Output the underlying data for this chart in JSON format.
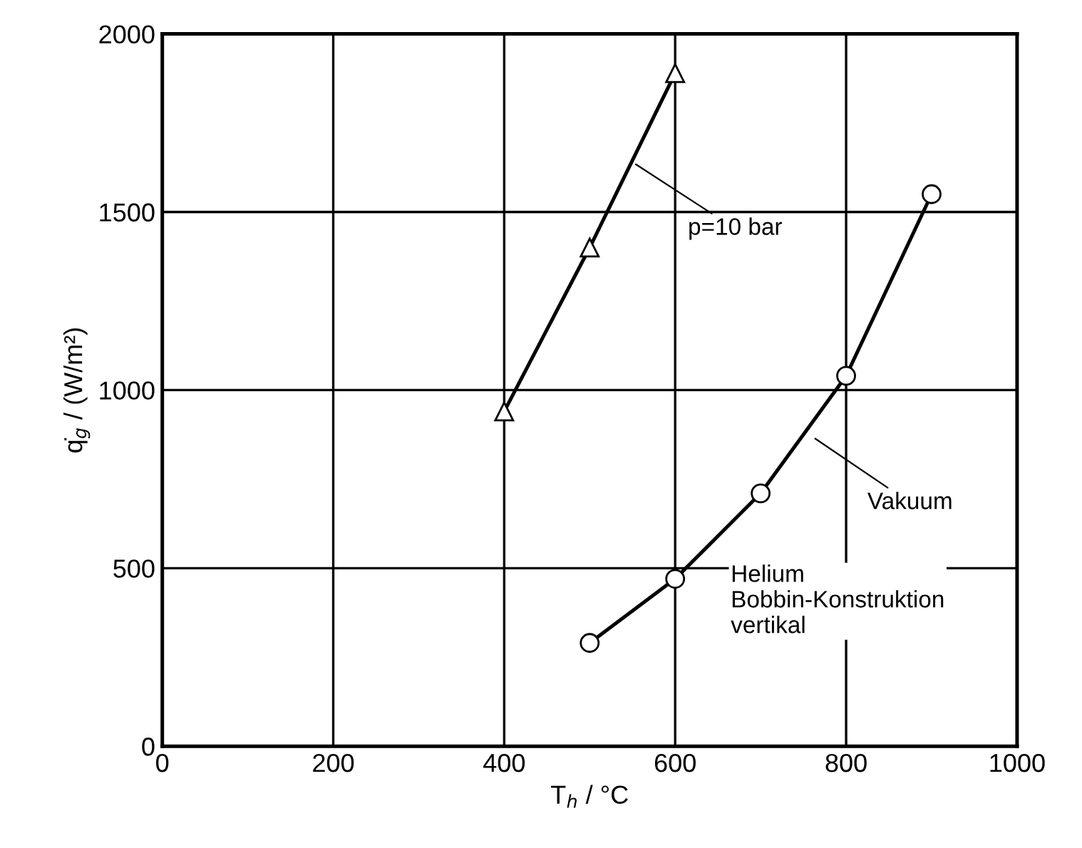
{
  "chart_data": {
    "type": "line",
    "xlabel": "T$_{h}$ / °C",
    "ylabel": "q̇$_{g}$ / (W/m²)",
    "xlim": [
      0,
      1000
    ],
    "xticks": [
      0,
      200,
      400,
      600,
      800,
      1000
    ],
    "ylim": [
      0,
      2000
    ],
    "yticks": [
      0,
      500,
      1000,
      1500,
      2000
    ],
    "grid": true,
    "series": [
      {
        "color": "#000000",
        "marker": "triangle",
        "x": [
          400,
          500,
          600
        ],
        "values": [
          940,
          1400,
          1890
        ]
      },
      {
        "color": "#000000",
        "marker": "circle",
        "x": [
          500,
          600,
          700,
          800,
          900
        ],
        "values": [
          290,
          470,
          710,
          1040,
          1550
        ]
      }
    ],
    "annotations": [
      {
        "text": "p=10 bar",
        "x": 550,
        "y": 1640
      },
      {
        "text": "Vakuum",
        "x": 760,
        "y": 870
      },
      "Helium\nBobbin-Konstruktion\nvertikal"
    ]
  }
}
